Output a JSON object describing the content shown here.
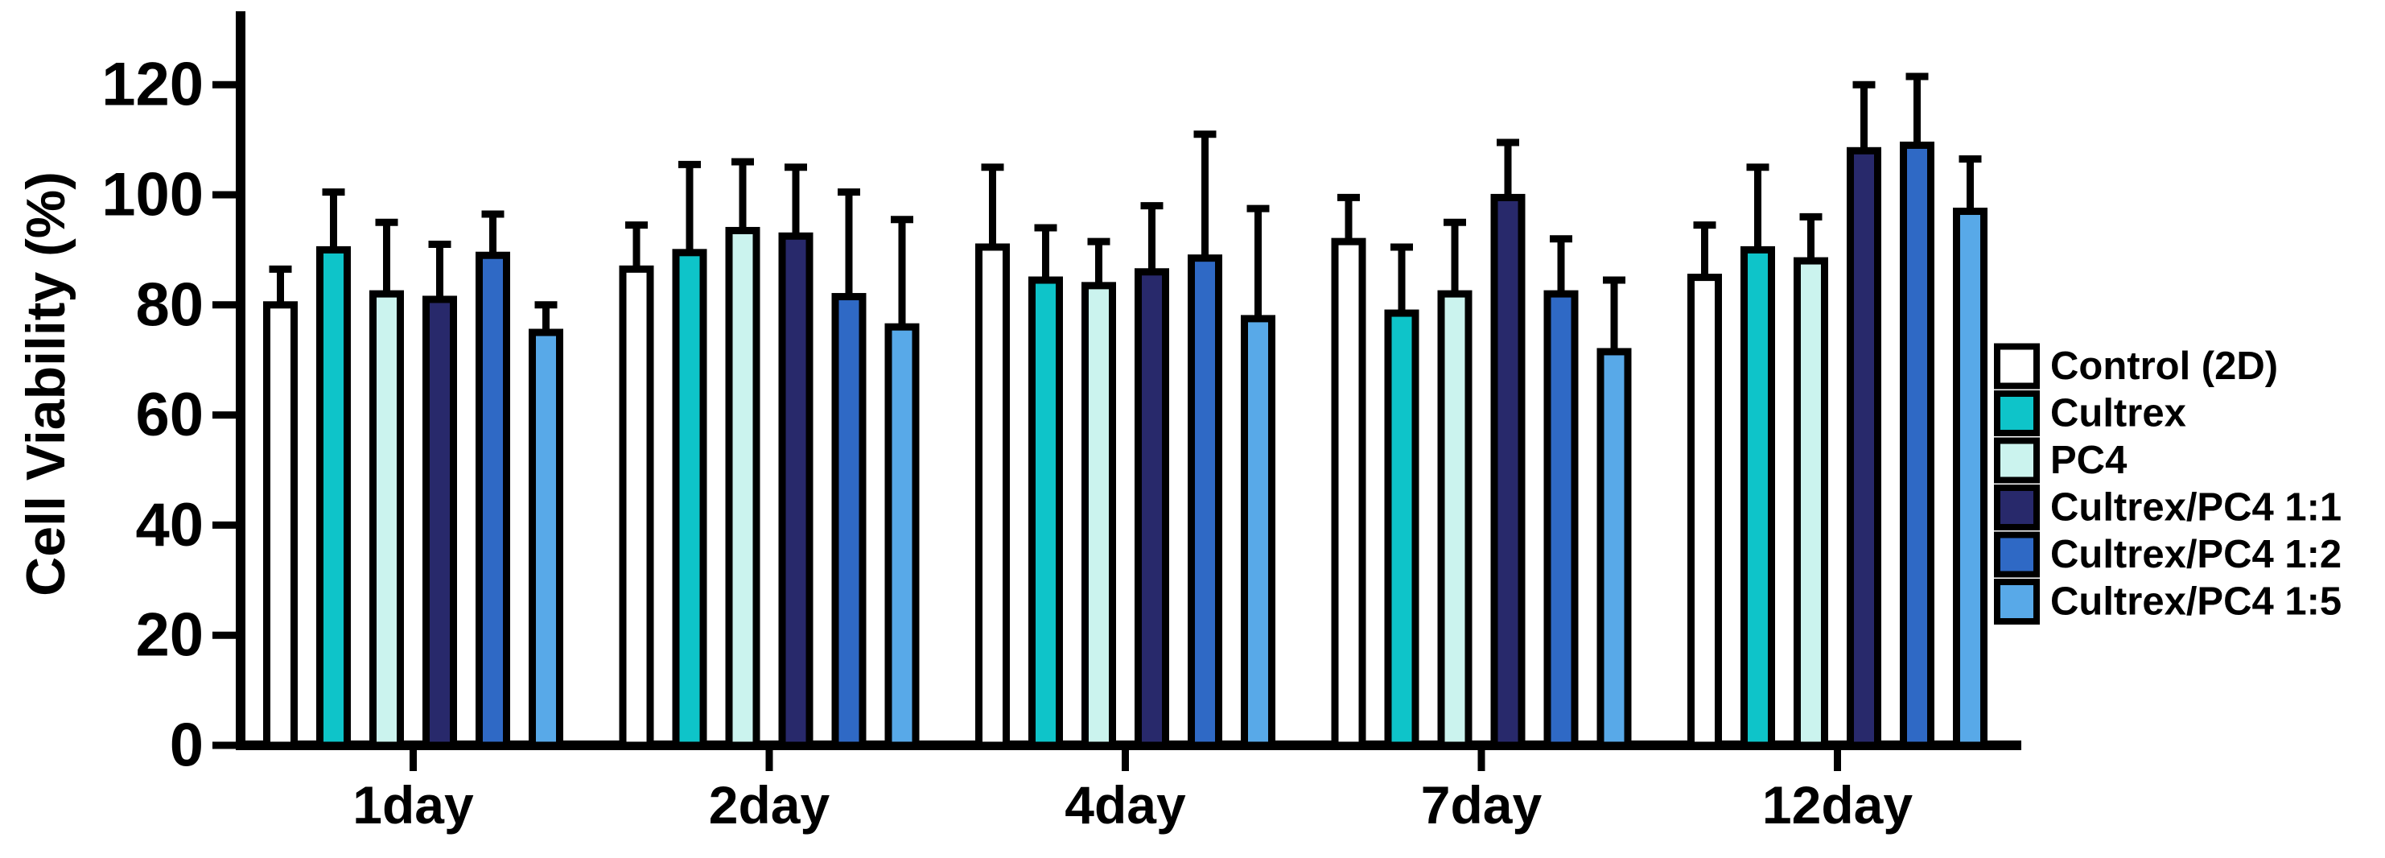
{
  "figure": {
    "background": "#ffffff",
    "description": "Grouped bar chart of cell viability over culture time with upper error bars"
  },
  "chart_data": {
    "type": "bar",
    "title": "",
    "xlabel": "",
    "ylabel": "Cell Viability (%)",
    "ylim": [
      0,
      120
    ],
    "yticks": [
      0,
      20,
      40,
      60,
      80,
      100,
      120
    ],
    "grid": false,
    "error_bars": "upper",
    "bar_outline_color": "#000000",
    "axis_color": "#000000",
    "legend_position": "right",
    "categories": [
      "1day",
      "2day",
      "4day",
      "7day",
      "12day"
    ],
    "series": [
      {
        "name": "Control (2D)",
        "color": "#FFFFFF",
        "values": [
          80,
          86.5,
          90.5,
          91.5,
          85
        ],
        "errors": [
          6.5,
          8,
          14.5,
          8,
          9.5
        ]
      },
      {
        "name": "Cultrex",
        "color": "#0EC4C9",
        "values": [
          90,
          89.5,
          84.5,
          78.5,
          90
        ],
        "errors": [
          10.5,
          16,
          9.5,
          12,
          15
        ]
      },
      {
        "name": "PC4",
        "color": "#CBF3EE",
        "values": [
          82,
          93.5,
          83.5,
          82,
          88
        ],
        "errors": [
          13,
          12.5,
          8,
          13,
          8
        ]
      },
      {
        "name": "Cultrex/PC4 1:1",
        "color": "#28296B",
        "values": [
          81,
          92.5,
          86,
          99.5,
          108
        ],
        "errors": [
          10,
          12.5,
          12,
          10,
          12
        ]
      },
      {
        "name": "Cultrex/PC4 1:2",
        "color": "#2F69C5",
        "values": [
          89,
          81.5,
          88.5,
          82,
          109
        ],
        "errors": [
          7.5,
          19,
          22.5,
          10,
          12.5
        ]
      },
      {
        "name": "Cultrex/PC4 1:5",
        "color": "#58A9E8",
        "values": [
          75,
          76,
          77.5,
          71.5,
          97
        ],
        "errors": [
          5,
          19.5,
          20,
          13,
          9.5
        ]
      }
    ]
  }
}
